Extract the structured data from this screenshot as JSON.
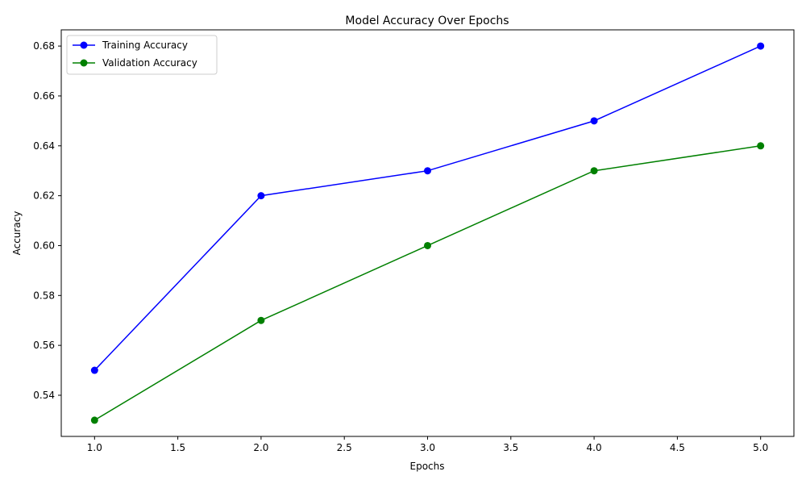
{
  "chart_data": {
    "type": "line",
    "title": "Model Accuracy Over Epochs",
    "xlabel": "Epochs",
    "ylabel": "Accuracy",
    "x": [
      1,
      2,
      3,
      4,
      5
    ],
    "xlim": [
      0.8,
      5.2
    ],
    "ylim": [
      0.5235,
      0.6865
    ],
    "xticks": [
      1.0,
      1.5,
      2.0,
      2.5,
      3.0,
      3.5,
      4.0,
      4.5,
      5.0
    ],
    "xtick_labels": [
      "1.0",
      "1.5",
      "2.0",
      "2.5",
      "3.0",
      "3.5",
      "4.0",
      "4.5",
      "5.0"
    ],
    "yticks": [
      0.54,
      0.56,
      0.58,
      0.6,
      0.62,
      0.64,
      0.66,
      0.68
    ],
    "ytick_labels": [
      "0.54",
      "0.56",
      "0.58",
      "0.60",
      "0.62",
      "0.64",
      "0.66",
      "0.68"
    ],
    "grid": false,
    "legend_position": "top-left",
    "series": [
      {
        "name": "Training Accuracy",
        "values": [
          0.55,
          0.62,
          0.63,
          0.65,
          0.68
        ],
        "color": "#0000ff"
      },
      {
        "name": "Validation Accuracy",
        "values": [
          0.53,
          0.57,
          0.6,
          0.63,
          0.64
        ],
        "color": "#008000"
      }
    ]
  }
}
